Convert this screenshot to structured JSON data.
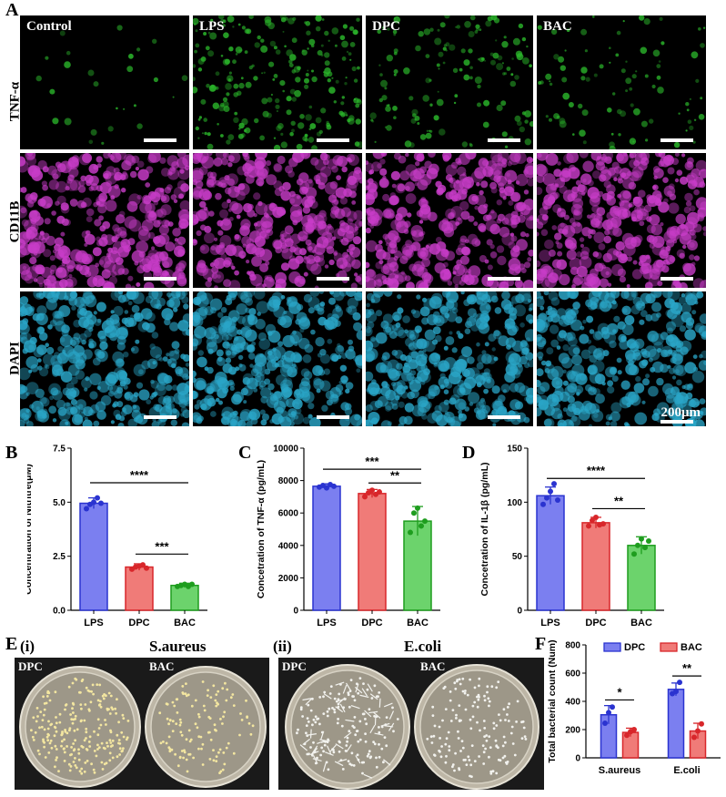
{
  "panelA": {
    "label": "A",
    "rows": [
      {
        "label": "TNF-α",
        "color": "#2bb82b"
      },
      {
        "label": "CD11B",
        "color": "#c83cc8"
      },
      {
        "label": "DAPI",
        "color": "#2aa6c8"
      }
    ],
    "conditions": [
      "Control",
      "LPS",
      "DPC",
      "BAC"
    ],
    "scale_text": "200μm"
  },
  "panelB": {
    "label": "B"
  },
  "panelC": {
    "label": "C"
  },
  "panelD": {
    "label": "D"
  },
  "panelE": {
    "label": "E",
    "sub_i": "(i)",
    "sub_ii": "(ii)",
    "title_i": "S.aureus",
    "title_ii": "E.coli",
    "cond_left": "DPC",
    "cond_right": "BAC"
  },
  "panelF": {
    "label": "F"
  },
  "colors": {
    "LPS": "#7b7ff0",
    "DPC": "#f07b78",
    "BAC": "#6cd36c",
    "LPS_edge": "#2a33d0",
    "DPC_edge": "#d8262a",
    "BAC_edge": "#1e9d1e"
  },
  "chart_data": [
    {
      "id": "B",
      "type": "bar",
      "categories": [
        "LPS",
        "DPC",
        "BAC"
      ],
      "values": [
        4.95,
        2.0,
        1.15
      ],
      "errors": [
        0.25,
        0.15,
        0.1
      ],
      "points": [
        [
          4.7,
          4.9,
          5.0,
          5.2,
          4.95
        ],
        [
          1.9,
          2.0,
          2.05,
          2.1,
          1.95
        ],
        [
          1.1,
          1.15,
          1.2,
          1.1,
          1.2
        ]
      ],
      "ylabel": "Concentration of Nitritre(μM)",
      "ylim": [
        0,
        7.5
      ],
      "yticks": [
        "0.0",
        "2.5",
        "5.0",
        "7.5"
      ],
      "sig": [
        {
          "from": 0,
          "to": 2,
          "y": 5.9,
          "label": "****"
        },
        {
          "from": 1,
          "to": 2,
          "y": 2.6,
          "label": "***"
        }
      ]
    },
    {
      "id": "C",
      "type": "bar",
      "categories": [
        "LPS",
        "DPC",
        "BAC"
      ],
      "values": [
        7650,
        7200,
        5500
      ],
      "errors": [
        150,
        250,
        900
      ],
      "points": [
        [
          7600,
          7700,
          7550,
          7750,
          7650
        ],
        [
          7000,
          7250,
          7400,
          7150,
          7300
        ],
        [
          4800,
          6000,
          6300,
          5200,
          5500
        ]
      ],
      "ylabel": "Concetration of TNF-α (pg/mL)",
      "ylim": [
        0,
        10000
      ],
      "yticks": [
        "0",
        "2000",
        "4000",
        "6000",
        "8000",
        "10000"
      ],
      "sig": [
        {
          "from": 0,
          "to": 2,
          "y": 8700,
          "label": "***"
        },
        {
          "from": 1,
          "to": 2,
          "y": 7850,
          "label": "**"
        }
      ]
    },
    {
      "id": "D",
      "type": "bar",
      "categories": [
        "LPS",
        "DPC",
        "BAC"
      ],
      "values": [
        106,
        81,
        60
      ],
      "errors": [
        8,
        5,
        8
      ],
      "points": [
        [
          98,
          104,
          110,
          117,
          102
        ],
        [
          78,
          83,
          86,
          79,
          80
        ],
        [
          52,
          60,
          66,
          58,
          64
        ]
      ],
      "ylabel": "Concetration of IL-1β (pg/mL)",
      "ylim": [
        0,
        150
      ],
      "yticks": [
        "0",
        "50",
        "100",
        "150"
      ],
      "sig": [
        {
          "from": 0,
          "to": 2,
          "y": 122,
          "label": "****"
        },
        {
          "from": 1,
          "to": 2,
          "y": 94,
          "label": "**"
        }
      ]
    },
    {
      "id": "F",
      "type": "bar",
      "categories": [
        "S.aureus",
        "E.coli"
      ],
      "series": [
        {
          "name": "DPC",
          "values": [
            305,
            485
          ],
          "errors": [
            65,
            45
          ],
          "points": [
            [
              245,
              320,
              360
            ],
            [
              455,
              470,
              535
            ]
          ]
        },
        {
          "name": "BAC",
          "values": [
            180,
            190
          ],
          "errors": [
            30,
            55
          ],
          "points": [
            [
              160,
              185,
              200
            ],
            [
              145,
              190,
              240
            ]
          ]
        }
      ],
      "ylabel": "Total bacterial count (Num)",
      "ylim": [
        0,
        800
      ],
      "yticks": [
        "0",
        "200",
        "400",
        "600",
        "800"
      ],
      "sig": [
        {
          "group": 0,
          "y": 410,
          "label": "*"
        },
        {
          "group": 1,
          "y": 580,
          "label": "**"
        }
      ]
    }
  ]
}
